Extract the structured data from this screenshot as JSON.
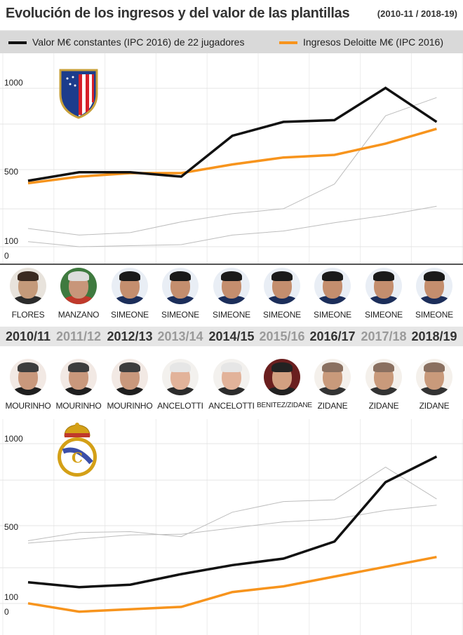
{
  "title": {
    "main": "Evolución de los ingresos y del valor de las plantillas",
    "sub": "(2010-11 / 2018-19)"
  },
  "legend": {
    "value_label": "Valor M€ constantes (IPC 2016) de 22 jugadores",
    "income_label": "Ingresos Deloitte M€ (IPC 2016)",
    "value_color": "#111111",
    "income_color": "#f7941d"
  },
  "seasons": [
    "2010/11",
    "2011/12",
    "2012/13",
    "2013/14",
    "2014/15",
    "2015/16",
    "2016/17",
    "2017/18",
    "2018/19"
  ],
  "atletico": {
    "crest_icon": "atletico-madrid-crest-icon",
    "y_ticks": [
      "1000",
      "500",
      "100",
      "0"
    ],
    "coaches": [
      "FLORES",
      "MANZANO",
      "SIMEONE",
      "SIMEONE",
      "SIMEONE",
      "SIMEONE",
      "SIMEONE",
      "SIMEONE",
      "SIMEONE"
    ]
  },
  "realmadrid": {
    "crest_icon": "real-madrid-crest-icon",
    "y_ticks": [
      "1000",
      "500",
      "100",
      "0"
    ],
    "coaches": [
      "MOURINHO",
      "MOURINHO",
      "MOURINHO",
      "ANCELOTTI",
      "ANCELOTTI",
      "BENITEZ/ZIDANE",
      "ZIDANE",
      "ZIDANE",
      "ZIDANE"
    ]
  },
  "chart_data": [
    {
      "type": "line",
      "club": "Atlético de Madrid",
      "title": "",
      "xlabel": "",
      "ylabel": "",
      "x": [
        "2010/11",
        "2011/12",
        "2012/13",
        "2013/14",
        "2014/15",
        "2015/16",
        "2016/17",
        "2017/18",
        "2018/19"
      ],
      "y_tick_labels": [
        "1000",
        "500",
        "100",
        "0"
      ],
      "ylim": [
        0,
        1000
      ],
      "series": [
        {
          "name": "Valor M€ constantes (IPC 2016) de 22 jugadores",
          "color": "#111111",
          "values": [
            475,
            525,
            525,
            500,
            735,
            815,
            825,
            1010,
            815
          ]
        },
        {
          "name": "Ingresos Deloitte M€ (IPC 2016)",
          "color": "#f7941d",
          "values": [
            460,
            500,
            520,
            520,
            570,
            610,
            625,
            690,
            775
          ]
        },
        {
          "color": "#bdbdbd",
          "values": [
            185,
            145,
            160,
            225,
            275,
            305,
            455,
            850,
            955
          ]
        },
        {
          "color": "#bdbdbd",
          "values": [
            105,
            80,
            85,
            90,
            145,
            170,
            220,
            265,
            320
          ]
        }
      ],
      "grid": true
    },
    {
      "type": "line",
      "club": "Real Madrid",
      "title": "",
      "xlabel": "",
      "ylabel": "",
      "x": [
        "2010/11",
        "2011/12",
        "2012/13",
        "2013/14",
        "2014/15",
        "2015/16",
        "2016/17",
        "2017/18",
        "2018/19"
      ],
      "y_tick_labels": [
        "1000",
        "500",
        "100",
        "0"
      ],
      "ylim": [
        0,
        1000
      ],
      "series": [
        {
          "name": "Valor M€ constantes (IPC 2016) de 22 jugadores",
          "color": "#111111",
          "values": [
            200,
            170,
            185,
            250,
            305,
            345,
            450,
            790,
            935
          ]
        },
        {
          "name": "Ingresos Deloitte M€ (IPC 2016)",
          "color": "#f7941d",
          "values": [
            80,
            45,
            55,
            65,
            140,
            175,
            235,
            295,
            355
          ]
        },
        {
          "color": "#bdbdbd",
          "values": [
            455,
            505,
            510,
            480,
            620,
            680,
            690,
            875,
            695
          ]
        },
        {
          "color": "#bdbdbd",
          "values": [
            440,
            465,
            490,
            495,
            530,
            565,
            580,
            630,
            660
          ]
        }
      ],
      "grid": true
    }
  ]
}
